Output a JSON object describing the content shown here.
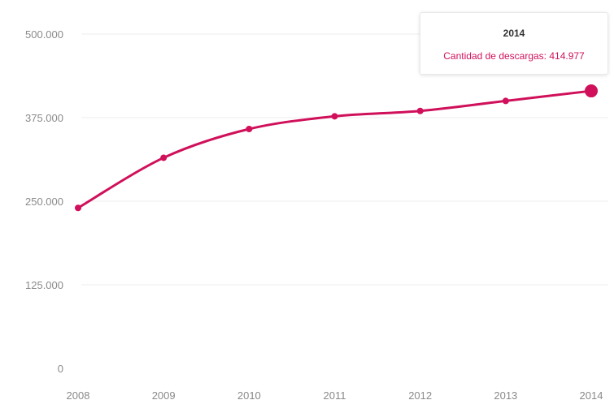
{
  "chart_data": {
    "type": "line",
    "x": [
      "2008",
      "2009",
      "2010",
      "2011",
      "2012",
      "2013",
      "2014"
    ],
    "values": [
      240000,
      315000,
      358000,
      377000,
      385000,
      400000,
      414977
    ],
    "y_ticks": [
      "0",
      "125.000",
      "250.000",
      "375.000",
      "500.000"
    ],
    "y_tick_values": [
      0,
      125000,
      250000,
      375000,
      500000
    ],
    "ylim": [
      0,
      500000
    ],
    "grid": true,
    "line_color": "#d0105a",
    "grid_color": "#ececec"
  },
  "tooltip": {
    "title": "2014",
    "series_label": "Cantidad de descargas: 414.977"
  }
}
